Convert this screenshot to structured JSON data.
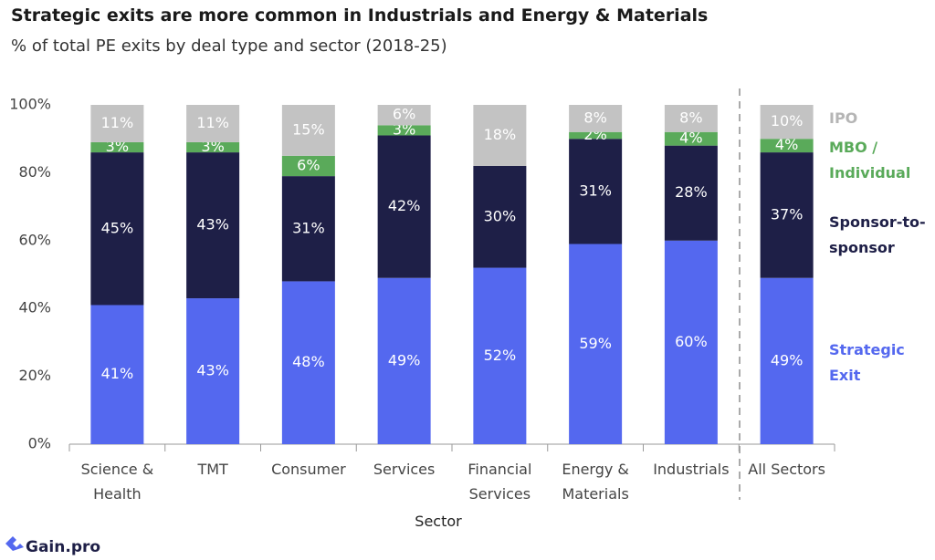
{
  "chart_data": {
    "type": "stacked_bar",
    "title": "Strategic exits are more common in Industrials and Energy & Materials",
    "subtitle": "% of total PE exits by deal type and sector (2018-25)",
    "x_label": "Sector",
    "categories": [
      "Science & Health",
      "TMT",
      "Consumer",
      "Services",
      "Financial Services",
      "Energy & Materials",
      "Industrials",
      "All Sectors"
    ],
    "series": [
      {
        "name": "Strategic Exit",
        "color": "#5468ef",
        "values": [
          41,
          43,
          48,
          49,
          52,
          59,
          60,
          49
        ],
        "value_labels": [
          "41%",
          "43%",
          "48%",
          "49%",
          "52%",
          "59%",
          "60%",
          "49%"
        ]
      },
      {
        "name": "Sponsor-to-sponsor",
        "color": "#1e1f47",
        "values": [
          45,
          43,
          31,
          42,
          30,
          31,
          28,
          37
        ],
        "value_labels": [
          "45%",
          "43%",
          "31%",
          "42%",
          "30%",
          "31%",
          "28%",
          "37%"
        ]
      },
      {
        "name": "MBO / Individual",
        "color": "#5aaa5a",
        "values": [
          3,
          3,
          6,
          3,
          0,
          2,
          4,
          4
        ],
        "value_labels": [
          "3%",
          "3%",
          "6%",
          "3%",
          null,
          "2%",
          "4%",
          "4%"
        ]
      },
      {
        "name": "IPO",
        "color": "#c3c3c3",
        "values": [
          11,
          11,
          15,
          6,
          18,
          8,
          8,
          10
        ],
        "value_labels": [
          "11%",
          "11%",
          "15%",
          "6%",
          "18%",
          "8%",
          "8%",
          "10%"
        ]
      }
    ],
    "legend_colors": [
      "#5468ef",
      "#1e1f47",
      "#5aaa5a",
      "#b5b5b5"
    ],
    "ylim": [
      0,
      100
    ],
    "yticks": [
      {
        "value": 0,
        "label": "0%"
      },
      {
        "value": 20,
        "label": "20%"
      },
      {
        "value": 40,
        "label": "40%"
      },
      {
        "value": 60,
        "label": "60%"
      },
      {
        "value": 80,
        "label": "80%"
      },
      {
        "value": 100,
        "label": "100%"
      }
    ],
    "source": "Gain.pro"
  }
}
